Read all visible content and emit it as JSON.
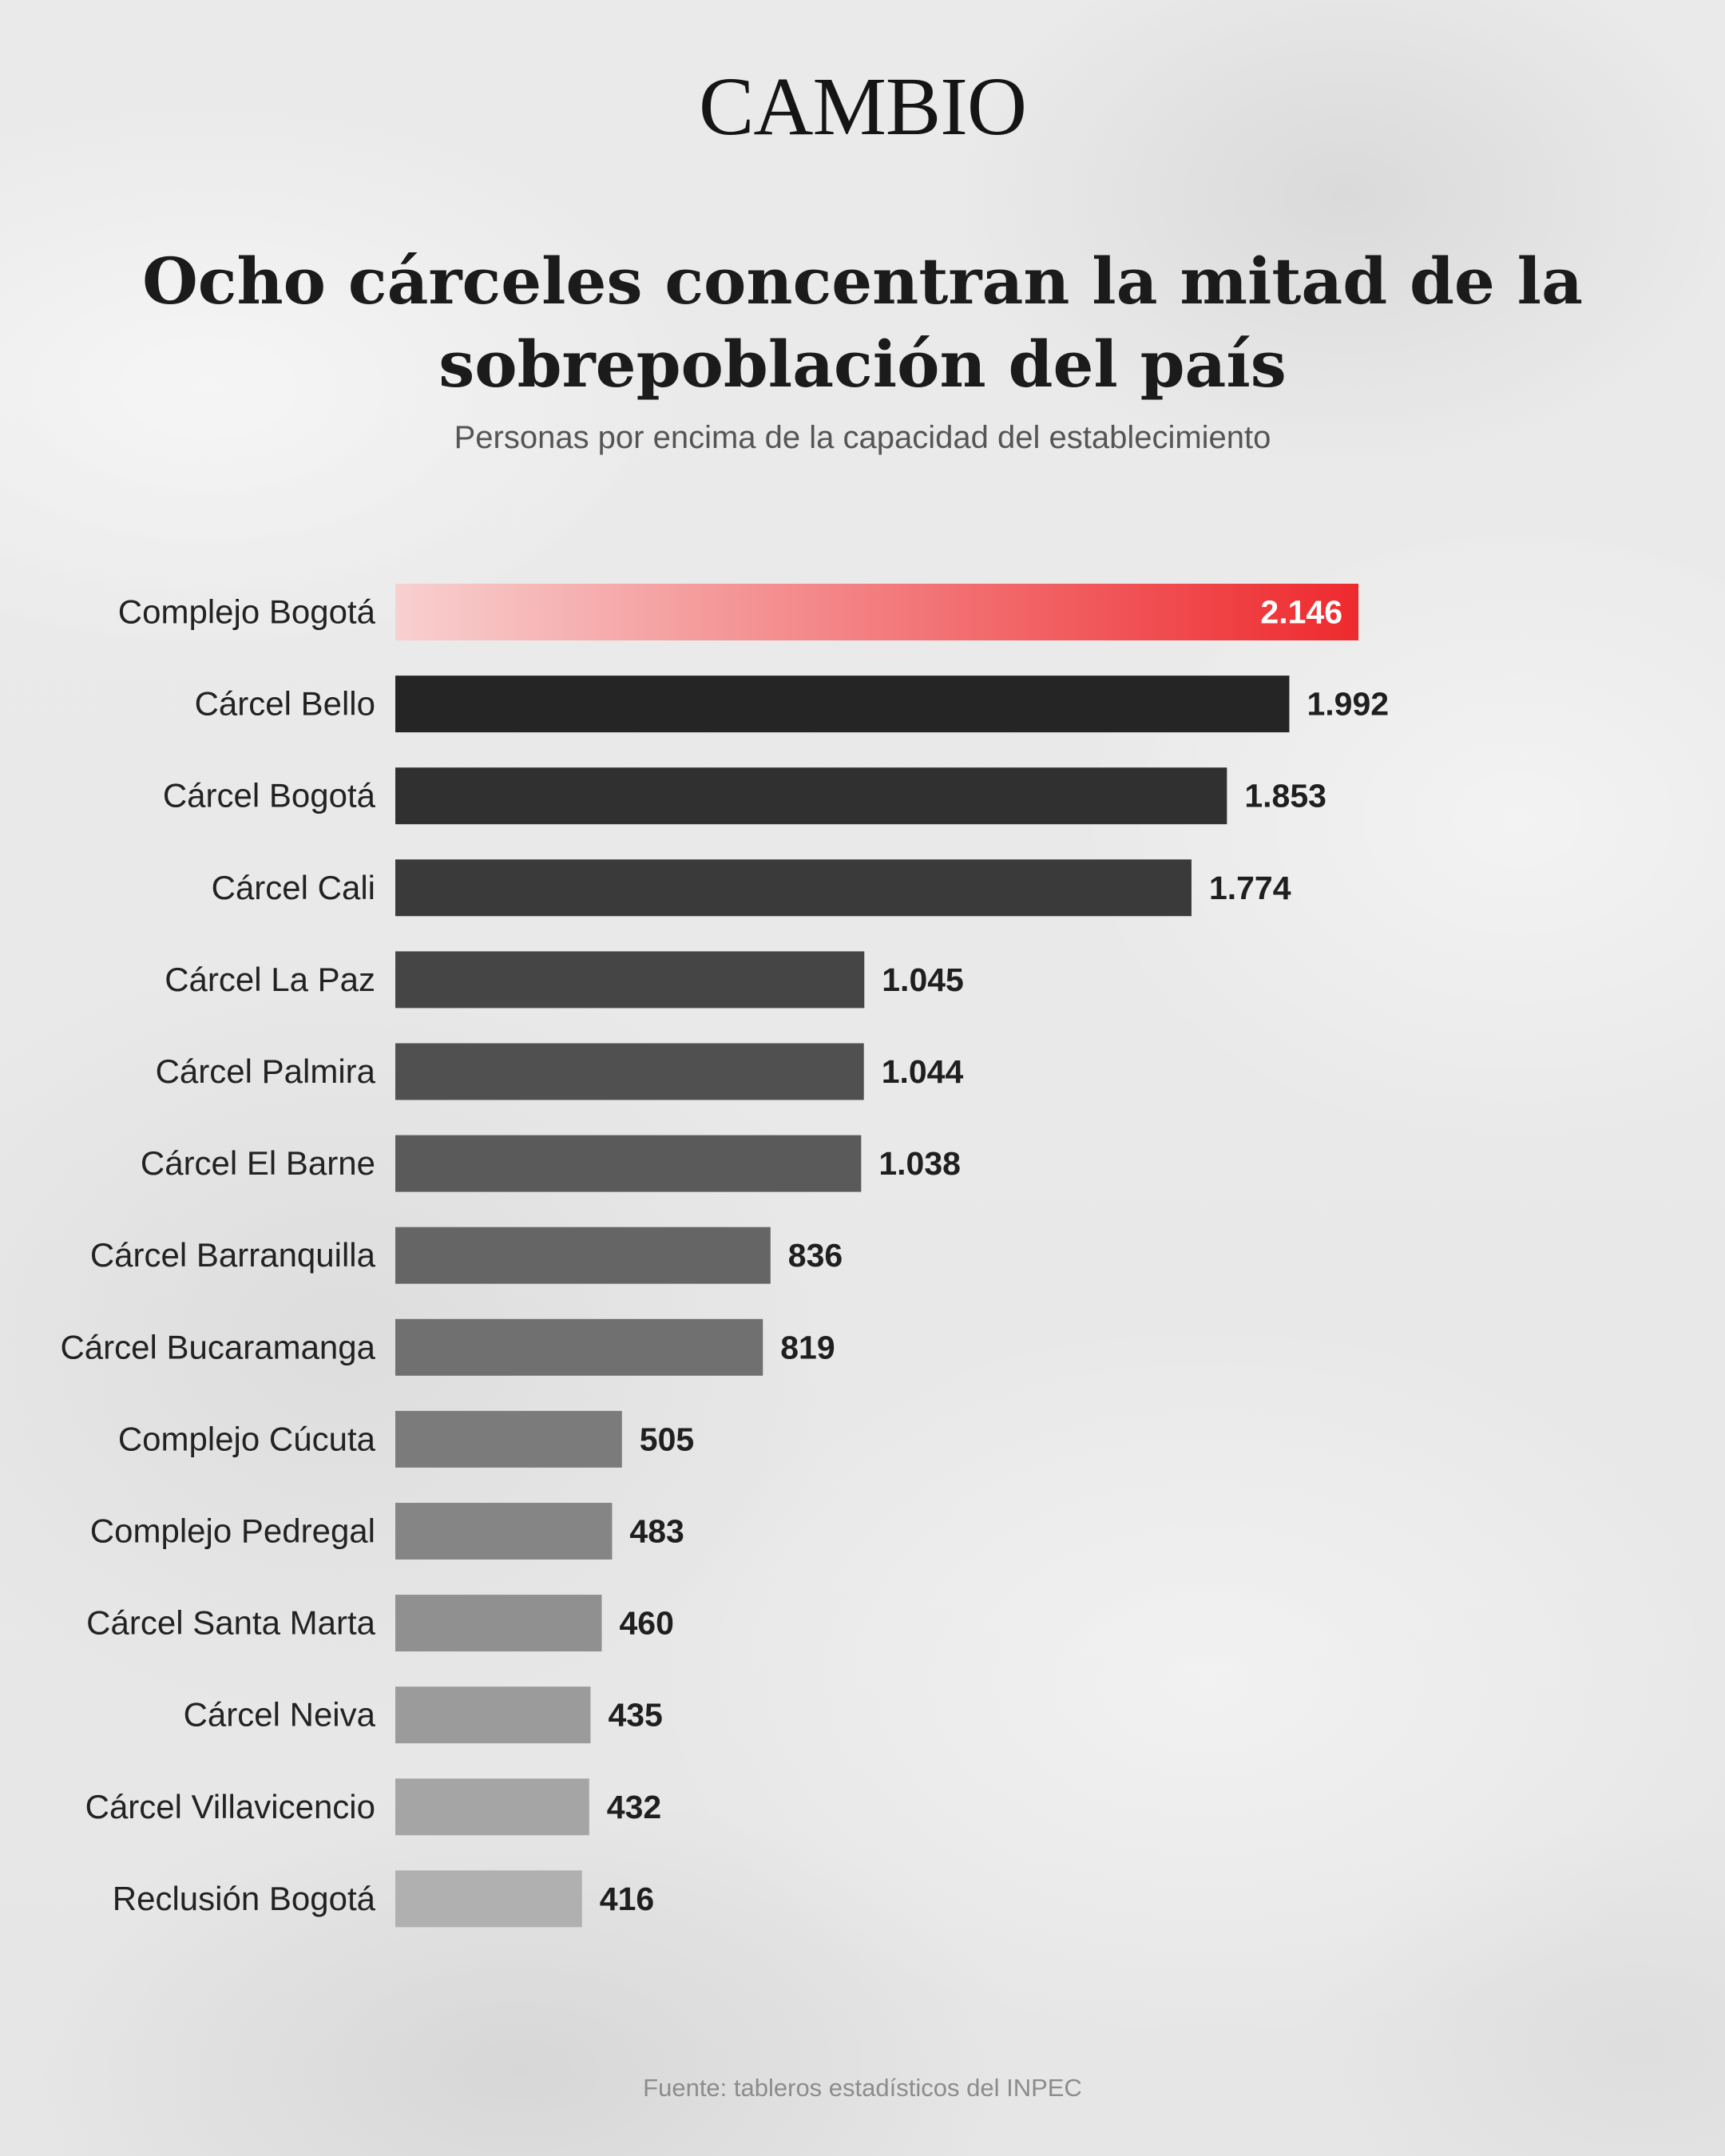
{
  "brand": {
    "logo_text": "CAMBIO"
  },
  "header": {
    "title": "Ocho cárceles concentran la mitad de la sobrepoblación del país",
    "subtitle": "Personas por encima de la capacidad del establecimiento"
  },
  "footer": {
    "source": "Fuente: tableros estadísticos del INPEC"
  },
  "colors": {
    "highlight_start": "#f8d0d0",
    "highlight_end": "#ee2a2e",
    "bar_darkest": "#252525",
    "bar_lightest": "#b0b0b0",
    "value_label": "#1f1f1f",
    "highlight_value_label": "#ffffff"
  },
  "chart_data": {
    "type": "bar",
    "orientation": "horizontal",
    "title": "Ocho cárceles concentran la mitad de la sobrepoblación del país",
    "subtitle": "Personas por encima de la capacidad del establecimiento",
    "categories": [
      "Complejo Bogotá",
      "Cárcel Bello",
      "Cárcel Bogotá",
      "Cárcel Cali",
      "Cárcel La Paz",
      "Cárcel Palmira",
      "Cárcel El Barne",
      "Cárcel Barranquilla",
      "Cárcel Bucaramanga",
      "Complejo Cúcuta",
      "Complejo Pedregal",
      "Cárcel Santa Marta",
      "Cárcel Neiva",
      "Cárcel Villavicencio",
      "Reclusión Bogotá"
    ],
    "values": [
      2146,
      1992,
      1853,
      1774,
      1045,
      1044,
      1038,
      836,
      819,
      505,
      483,
      460,
      435,
      432,
      416
    ],
    "value_labels": [
      "2.146",
      "1.992",
      "1.853",
      "1.774",
      "1.045",
      "1.044",
      "1.038",
      "836",
      "819",
      "505",
      "483",
      "460",
      "435",
      "432",
      "416"
    ],
    "highlighted_category": "Complejo Bogotá",
    "xlim": [
      0,
      2146
    ],
    "grid": false,
    "legend": false
  }
}
